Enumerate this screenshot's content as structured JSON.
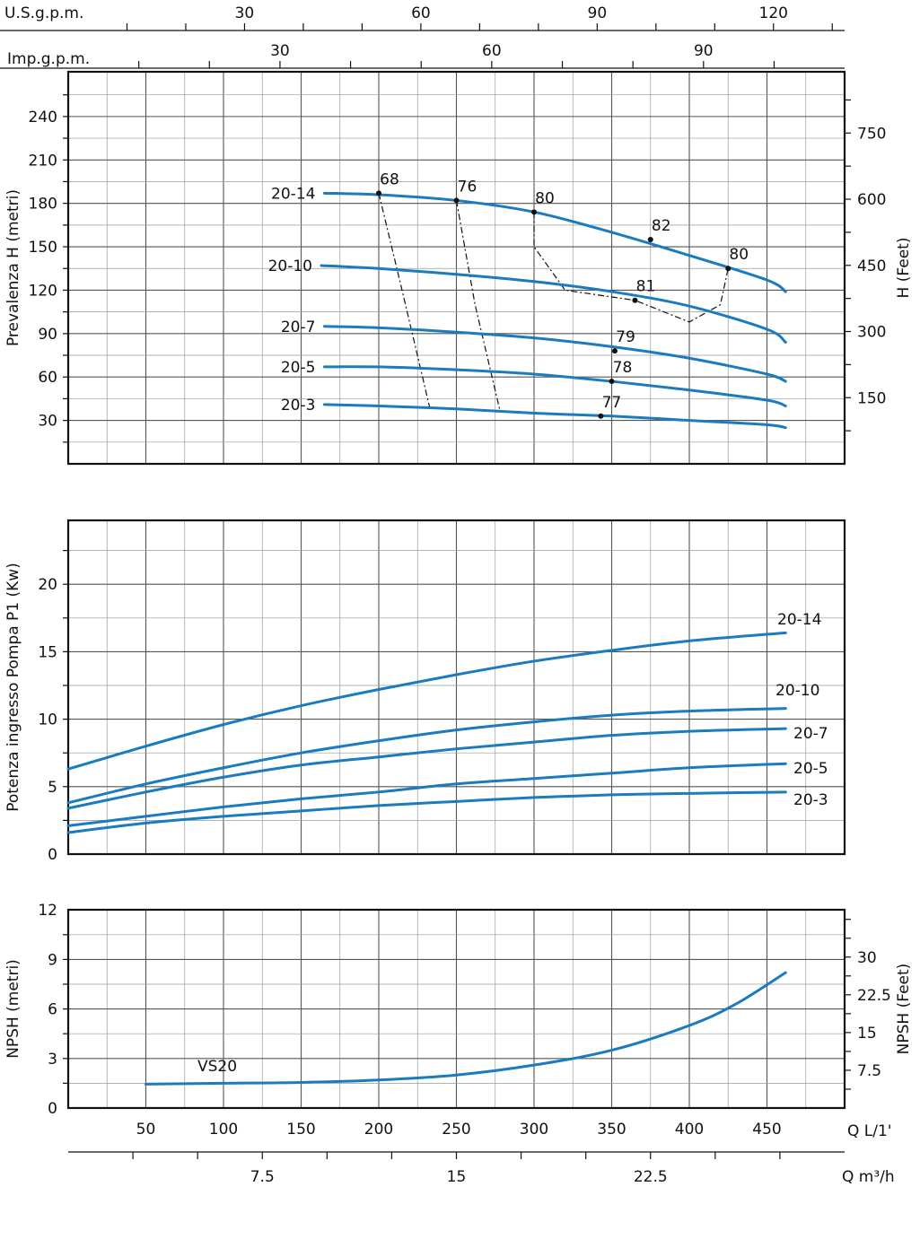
{
  "chart_data": [
    {
      "type": "line",
      "title": "",
      "ylabel": "Prevalenza H (metri)",
      "y2label": "H (Feet)",
      "xlim": [
        0,
        500
      ],
      "ylim": [
        0,
        270
      ],
      "yticks": [
        "30",
        "60",
        "90",
        "120",
        "150",
        "180",
        "210",
        "240"
      ],
      "y2ticks": [
        "150",
        "300",
        "450",
        "600",
        "750"
      ],
      "top_axis_usgpm": {
        "label": "U.S.g.p.m.",
        "ticks": [
          "30",
          "60",
          "90",
          "120"
        ]
      },
      "top_axis_impgpm": {
        "label": "Imp.g.p.m.",
        "ticks": [
          "30",
          "60",
          "90"
        ]
      },
      "series": [
        {
          "name": "20-14",
          "x": [
            165,
            200,
            250,
            300,
            350,
            400,
            450,
            462
          ],
          "y": [
            187,
            186,
            182,
            174,
            160,
            144,
            127,
            119
          ]
        },
        {
          "name": "20-10",
          "x": [
            163,
            200,
            250,
            300,
            350,
            400,
            450,
            462
          ],
          "y": [
            137,
            135,
            131,
            126,
            119,
            109,
            93,
            84
          ]
        },
        {
          "name": "20-7",
          "x": [
            165,
            200,
            250,
            300,
            350,
            400,
            450,
            462
          ],
          "y": [
            95,
            94,
            91,
            87,
            81,
            73,
            62,
            57
          ]
        },
        {
          "name": "20-5",
          "x": [
            165,
            200,
            250,
            300,
            350,
            400,
            450,
            462
          ],
          "y": [
            67,
            67,
            65,
            62,
            57,
            51,
            44,
            40
          ]
        },
        {
          "name": "20-3",
          "x": [
            165,
            200,
            250,
            300,
            350,
            400,
            450,
            462
          ],
          "y": [
            41,
            40,
            38,
            35,
            33,
            30,
            27,
            25
          ]
        }
      ],
      "efficiency_points": [
        {
          "label": "68",
          "x": 200,
          "y": 187
        },
        {
          "label": "76",
          "x": 250,
          "y": 182
        },
        {
          "label": "80",
          "x": 300,
          "y": 174
        },
        {
          "label": "82",
          "x": 375,
          "y": 155
        },
        {
          "label": "80",
          "x": 425,
          "y": 135
        },
        {
          "label": "81",
          "x": 365,
          "y": 113
        },
        {
          "label": "79",
          "x": 352,
          "y": 78
        },
        {
          "label": "78",
          "x": 350,
          "y": 57
        },
        {
          "label": "77",
          "x": 343,
          "y": 33
        }
      ]
    },
    {
      "type": "line",
      "ylabel": "Potenza ingresso Pompa P1 (Kw)",
      "xlim": [
        0,
        500
      ],
      "ylim": [
        0,
        25
      ],
      "yticks": [
        "0",
        "5",
        "10",
        "15",
        "20"
      ],
      "series": [
        {
          "name": "20-14",
          "x": [
            0,
            50,
            100,
            150,
            200,
            250,
            300,
            350,
            400,
            462
          ],
          "y": [
            6.3,
            8.0,
            9.6,
            11.0,
            12.2,
            13.3,
            14.3,
            15.1,
            15.8,
            16.4
          ]
        },
        {
          "name": "20-10",
          "x": [
            0,
            50,
            100,
            150,
            200,
            250,
            300,
            350,
            400,
            462
          ],
          "y": [
            3.8,
            5.2,
            6.4,
            7.5,
            8.4,
            9.2,
            9.8,
            10.3,
            10.6,
            10.8
          ]
        },
        {
          "name": "20-7",
          "x": [
            0,
            50,
            100,
            150,
            200,
            250,
            300,
            350,
            400,
            462
          ],
          "y": [
            3.4,
            4.6,
            5.7,
            6.6,
            7.2,
            7.8,
            8.3,
            8.8,
            9.1,
            9.3
          ]
        },
        {
          "name": "20-5",
          "x": [
            0,
            50,
            100,
            150,
            200,
            250,
            300,
            350,
            400,
            462
          ],
          "y": [
            2.1,
            2.8,
            3.5,
            4.1,
            4.6,
            5.2,
            5.6,
            6.0,
            6.4,
            6.7
          ]
        },
        {
          "name": "20-3",
          "x": [
            0,
            50,
            100,
            150,
            200,
            250,
            300,
            350,
            400,
            462
          ],
          "y": [
            1.6,
            2.3,
            2.8,
            3.2,
            3.6,
            3.9,
            4.2,
            4.4,
            4.5,
            4.6
          ]
        }
      ]
    },
    {
      "type": "line",
      "ylabel": "NPSH (metri)",
      "y2label": "NPSH (Feet)",
      "annotation": "VS20",
      "xlim": [
        0,
        500
      ],
      "ylim": [
        0,
        12
      ],
      "yticks": [
        "0",
        "3",
        "6",
        "9",
        "12"
      ],
      "y2ticks": [
        "7.5",
        "15",
        "22.5",
        "30"
      ],
      "xlabel": "Q L/1'",
      "x2label": "Q m³/h",
      "xticks": [
        "50",
        "100",
        "150",
        "200",
        "250",
        "300",
        "350",
        "400",
        "450"
      ],
      "x2ticks": [
        "7.5",
        "15",
        "22.5"
      ],
      "series": [
        {
          "name": "VS20",
          "x": [
            50,
            100,
            150,
            200,
            250,
            300,
            350,
            400,
            430,
            462
          ],
          "y": [
            1.45,
            1.5,
            1.55,
            1.7,
            2.0,
            2.6,
            3.5,
            5.0,
            6.3,
            8.2
          ]
        }
      ]
    }
  ]
}
